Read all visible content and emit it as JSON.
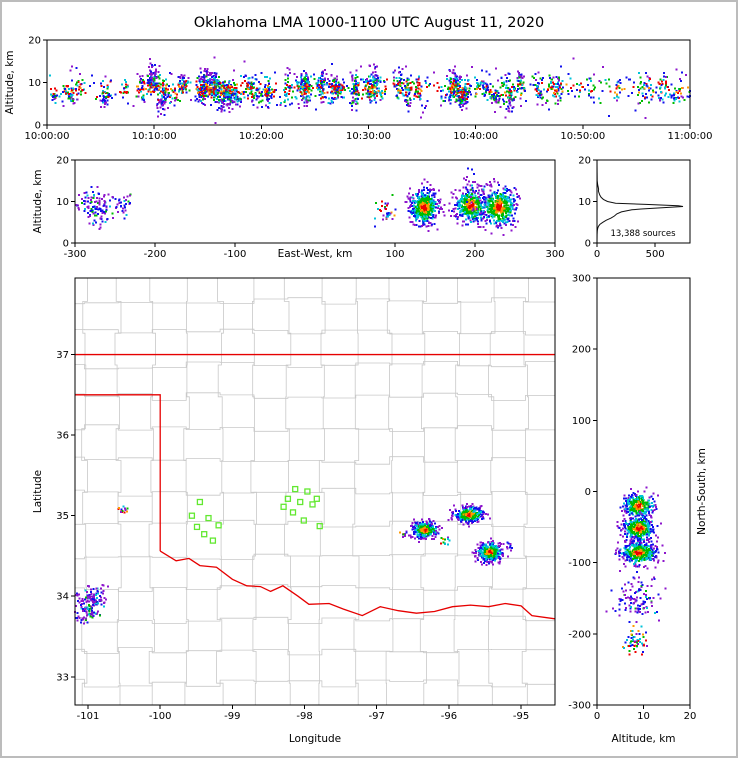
{
  "figure": {
    "title": "Oklahoma LMA 1000-1100 UTC August 11, 2020",
    "background": "#ffffff",
    "frame_border": "#bcbcbc"
  },
  "palette": {
    "red": "#ee0000",
    "orange": "#ff9900",
    "green": "#00bb00",
    "cyan": "#00c3d9",
    "blue": "#1010ee",
    "purple": "#8d16cc",
    "curve": "#111111"
  },
  "chart_data": [
    {
      "id": "alt_time",
      "type": "scatter",
      "ylabel": "Altitude, km",
      "xlim": [
        0,
        3600
      ],
      "ylim": [
        0,
        20
      ],
      "x_ticks": [
        {
          "v": 0,
          "label": "10:00:00"
        },
        {
          "v": 600,
          "label": "10:10:00"
        },
        {
          "v": 1200,
          "label": "10:20:00"
        },
        {
          "v": 1800,
          "label": "10:30:00"
        },
        {
          "v": 2400,
          "label": "10:40:00"
        },
        {
          "v": 3000,
          "label": "10:50:00"
        },
        {
          "v": 3600,
          "label": "11:00:00"
        }
      ],
      "y_ticks": [
        {
          "v": 0,
          "label": "0"
        },
        {
          "v": 10,
          "label": "10"
        },
        {
          "v": 20,
          "label": "20"
        }
      ],
      "seed": 42,
      "gen": {
        "alt_mean": 8.4,
        "alt_band_sd": 1.9,
        "dense": {
          "t0": 0,
          "t1": 2650,
          "bursts": 80,
          "pts_min": 6,
          "pts_max": 48
        },
        "sparse": {
          "t0": 2650,
          "t1": 3600,
          "bursts": 30,
          "pts_min": 3,
          "pts_max": 14
        },
        "sprinkle": 340
      }
    },
    {
      "id": "alt_ew",
      "type": "scatter",
      "xlabel": "East-West, km",
      "ylabel": "Altitude, km",
      "xlim": [
        -300,
        300
      ],
      "ylim": [
        0,
        20
      ],
      "x_ticks": [
        {
          "v": -300,
          "label": "-300"
        },
        {
          "v": -200,
          "label": "-200"
        },
        {
          "v": -100,
          "label": "-100"
        },
        {
          "v": 100,
          "label": "100"
        },
        {
          "v": 200,
          "label": "200"
        },
        {
          "v": 300,
          "label": "300"
        }
      ],
      "y_ticks": [
        {
          "v": 0,
          "label": "0"
        },
        {
          "v": 10,
          "label": "10"
        },
        {
          "v": 20,
          "label": "20"
        }
      ],
      "seed": 7,
      "clusters": [
        {
          "cx": -272,
          "cy": 9.0,
          "sx": 15,
          "sy": 2.4,
          "n": 130,
          "mode": "cool"
        },
        {
          "cx": -238,
          "cy": 10.0,
          "sx": 6,
          "sy": 1.6,
          "n": 20,
          "mode": "cool"
        },
        {
          "cx": 90,
          "cy": 7.5,
          "sx": 7,
          "sy": 1.5,
          "n": 32,
          "mode": "mixed"
        },
        {
          "cx": 137,
          "cy": 8.6,
          "sx": 9,
          "sy": 2.1,
          "n": 430,
          "mode": "hot"
        },
        {
          "cx": 195,
          "cy": 9.0,
          "sx": 10,
          "sy": 2.0,
          "n": 390,
          "mode": "hot"
        },
        {
          "cx": 197,
          "cy": 14.5,
          "sx": 7,
          "sy": 2.4,
          "n": 28,
          "mode": "cool"
        },
        {
          "cx": 230,
          "cy": 8.6,
          "sx": 11,
          "sy": 2.3,
          "n": 430,
          "mode": "hot"
        }
      ]
    },
    {
      "id": "source_histogram",
      "type": "line",
      "xlim": [
        0,
        800
      ],
      "ylim": [
        0,
        20
      ],
      "x_ticks": [
        {
          "v": 0,
          "label": "0"
        },
        {
          "v": 500,
          "label": "500"
        }
      ],
      "y_ticks": [
        {
          "v": 0,
          "label": "0"
        },
        {
          "v": 10,
          "label": "10"
        },
        {
          "v": 20,
          "label": "20"
        }
      ],
      "annotation": "13,388 sources",
      "profile": [
        [
          0,
          0
        ],
        [
          2,
          1
        ],
        [
          3,
          3
        ],
        [
          3.5,
          6
        ],
        [
          4,
          12
        ],
        [
          4.5,
          25
        ],
        [
          5,
          50
        ],
        [
          5.5,
          80
        ],
        [
          6,
          120
        ],
        [
          6.5,
          150
        ],
        [
          7,
          170
        ],
        [
          7.5,
          210
        ],
        [
          8,
          300
        ],
        [
          8.2,
          380
        ],
        [
          8.5,
          560
        ],
        [
          8.8,
          740
        ],
        [
          9,
          700
        ],
        [
          9.3,
          420
        ],
        [
          9.6,
          160
        ],
        [
          10,
          90
        ],
        [
          10.5,
          55
        ],
        [
          11,
          35
        ],
        [
          11.5,
          25
        ],
        [
          12,
          18
        ],
        [
          12.5,
          12
        ],
        [
          13,
          14
        ],
        [
          13.5,
          10
        ],
        [
          14,
          6
        ],
        [
          15,
          2
        ],
        [
          17,
          1
        ],
        [
          20,
          0
        ]
      ]
    },
    {
      "id": "map",
      "type": "scatter",
      "xlabel": "Longitude",
      "ylabel": "Latitude",
      "xlim": [
        -101.18,
        -94.53
      ],
      "ylim": [
        32.65,
        37.95
      ],
      "x_ticks": [
        {
          "v": -101,
          "label": "-101"
        },
        {
          "v": -100,
          "label": "-100"
        },
        {
          "v": -99,
          "label": "-99"
        },
        {
          "v": -98,
          "label": "-98"
        },
        {
          "v": -97,
          "label": "-97"
        },
        {
          "v": -96,
          "label": "-96"
        },
        {
          "v": -95,
          "label": "-95"
        }
      ],
      "y_ticks": [
        {
          "v": 33,
          "label": "33"
        },
        {
          "v": 34,
          "label": "34"
        },
        {
          "v": 35,
          "label": "35"
        },
        {
          "v": 36,
          "label": "36"
        },
        {
          "v": 37,
          "label": "37"
        }
      ],
      "seed": 13,
      "state_border": {
        "color": "#e60000",
        "north_lat": 37.0,
        "panhandle": [
          [
            -101.18,
            36.5
          ],
          [
            -100.0,
            36.5
          ],
          [
            -100.0,
            34.56
          ]
        ],
        "red_river": [
          [
            -100.0,
            34.56
          ],
          [
            -99.78,
            34.44
          ],
          [
            -99.6,
            34.47
          ],
          [
            -99.45,
            34.38
          ],
          [
            -99.22,
            34.36
          ],
          [
            -99.0,
            34.21
          ],
          [
            -98.8,
            34.13
          ],
          [
            -98.61,
            34.12
          ],
          [
            -98.47,
            34.06
          ],
          [
            -98.3,
            34.13
          ],
          [
            -98.09,
            34.0
          ],
          [
            -97.94,
            33.9
          ],
          [
            -97.66,
            33.91
          ],
          [
            -97.46,
            33.84
          ],
          [
            -97.2,
            33.76
          ],
          [
            -96.95,
            33.87
          ],
          [
            -96.7,
            33.82
          ],
          [
            -96.45,
            33.79
          ],
          [
            -96.2,
            33.81
          ],
          [
            -95.95,
            33.87
          ],
          [
            -95.7,
            33.89
          ],
          [
            -95.45,
            33.87
          ],
          [
            -95.22,
            33.91
          ],
          [
            -95.0,
            33.88
          ],
          [
            -94.85,
            33.76
          ],
          [
            -94.53,
            33.72
          ]
        ]
      },
      "counties": {
        "seed": 9,
        "lon0": -101.05,
        "lon_step": 0.47,
        "lat0": 32.92,
        "lat_step": 0.395,
        "jitter": 0.05,
        "color": "#c8c8c8"
      },
      "station_color": "#62e830",
      "stations": [
        [
          -99.45,
          35.17
        ],
        [
          -99.56,
          35.0
        ],
        [
          -99.33,
          34.97
        ],
        [
          -99.49,
          34.86
        ],
        [
          -99.39,
          34.77
        ],
        [
          -99.27,
          34.69
        ],
        [
          -99.19,
          34.88
        ],
        [
          -98.13,
          35.33
        ],
        [
          -97.96,
          35.3
        ],
        [
          -98.23,
          35.21
        ],
        [
          -98.06,
          35.17
        ],
        [
          -97.89,
          35.14
        ],
        [
          -98.16,
          35.04
        ],
        [
          -97.83,
          35.21
        ],
        [
          -98.01,
          34.94
        ],
        [
          -97.79,
          34.87
        ],
        [
          -98.29,
          35.11
        ]
      ],
      "clusters": [
        {
          "cx": -101.02,
          "cy": 33.86,
          "sx": 0.1,
          "sy": 0.1,
          "n": 110,
          "mode": "cool"
        },
        {
          "cx": -100.88,
          "cy": 34.0,
          "sx": 0.07,
          "sy": 0.07,
          "n": 55,
          "mode": "cool"
        },
        {
          "cx": -100.52,
          "cy": 35.06,
          "sx": 0.035,
          "sy": 0.03,
          "n": 14,
          "mode": "mixed"
        },
        {
          "cx": -96.33,
          "cy": 34.82,
          "sx": 0.085,
          "sy": 0.05,
          "n": 330,
          "mode": "hot"
        },
        {
          "cx": -95.72,
          "cy": 35.01,
          "sx": 0.1,
          "sy": 0.05,
          "n": 310,
          "mode": "hot"
        },
        {
          "cx": -95.43,
          "cy": 34.55,
          "sx": 0.085,
          "sy": 0.06,
          "n": 330,
          "mode": "hot"
        },
        {
          "cx": -96.62,
          "cy": 34.78,
          "sx": 0.03,
          "sy": 0.02,
          "n": 10,
          "mode": "mixed"
        },
        {
          "cx": -95.15,
          "cy": 34.63,
          "sx": 0.03,
          "sy": 0.03,
          "n": 9,
          "mode": "cool"
        },
        {
          "cx": -96.05,
          "cy": 34.68,
          "sx": 0.04,
          "sy": 0.03,
          "n": 12,
          "mode": "mixed"
        }
      ]
    },
    {
      "id": "alt_ns",
      "type": "scatter",
      "xlabel": "Altitude, km",
      "ylabel": "North-South, km",
      "xlim": [
        0,
        20
      ],
      "ylim": [
        -300,
        300
      ],
      "x_ticks": [
        {
          "v": 0,
          "label": "0"
        },
        {
          "v": 10,
          "label": "10"
        },
        {
          "v": 20,
          "label": "20"
        }
      ],
      "y_ticks": [
        {
          "v": 300,
          "label": "300"
        },
        {
          "v": 200,
          "label": "200"
        },
        {
          "v": 100,
          "label": "100"
        },
        {
          "v": 0,
          "label": "0"
        },
        {
          "v": -100,
          "label": "-100"
        },
        {
          "v": -200,
          "label": "-200"
        },
        {
          "v": -300,
          "label": "-300"
        }
      ],
      "seed": 21,
      "clusters": [
        {
          "cx": 9.0,
          "cy": -20,
          "sx": 1.6,
          "sy": 9,
          "n": 300,
          "mode": "hot"
        },
        {
          "cx": 9.0,
          "cy": -52,
          "sx": 1.8,
          "sy": 9,
          "n": 330,
          "mode": "hot"
        },
        {
          "cx": 9.0,
          "cy": -86,
          "sx": 2.0,
          "sy": 8,
          "n": 380,
          "mode": "hot"
        },
        {
          "cx": 9.0,
          "cy": -152,
          "sx": 2.4,
          "sy": 15,
          "n": 115,
          "mode": "cool"
        },
        {
          "cx": 8.5,
          "cy": -210,
          "sx": 1.3,
          "sy": 8,
          "n": 60,
          "mode": "mixed"
        }
      ]
    }
  ]
}
